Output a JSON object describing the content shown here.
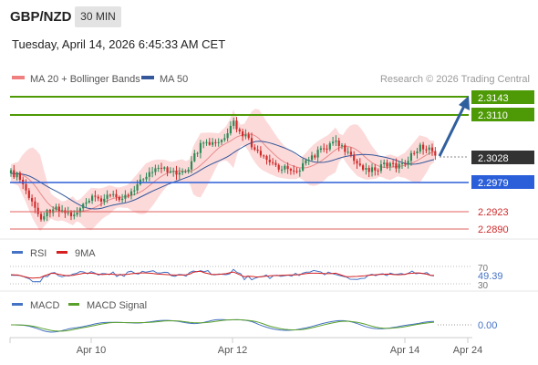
{
  "header": {
    "symbol": "GBP/NZD",
    "interval": "30 MIN",
    "datetime": "Tuesday, April 14, 2026 6:45:33 AM CET"
  },
  "legend": {
    "ma20_label": "MA 20 + Bollinger Bands",
    "ma50_label": "MA 50",
    "copyright": "Research © 2026 Trading Central"
  },
  "colors": {
    "green_level": "#4e9a06",
    "blue_level": "#2b5fd9",
    "red_level": "#e06060",
    "bollinger_fill": "#fbd3d3",
    "ma20": "#e88a8a",
    "ma50": "#35589a",
    "candle_up": "#2e8b57",
    "candle_down": "#d02b2b",
    "current_price_bg": "#333333",
    "arrow": "#2f5f9e",
    "rsi": "#4472c4",
    "rsi_ma": "#d62020",
    "macd": "#4472c4",
    "macd_signal": "#5aa02c"
  },
  "price_levels": [
    {
      "value": "2.3143",
      "kind": "resistance-target"
    },
    {
      "value": "2.3110",
      "kind": "resistance"
    },
    {
      "value": "2.3028",
      "kind": "current"
    },
    {
      "value": "2.2979",
      "kind": "pivot"
    },
    {
      "value": "2.2923",
      "kind": "support"
    },
    {
      "value": "2.2890",
      "kind": "support"
    }
  ],
  "rsi": {
    "label": "RSI",
    "ma_label": "9MA",
    "value": "49.39",
    "level_high": "70",
    "level_low": "30"
  },
  "macd": {
    "label": "MACD",
    "signal_label": "MACD Signal",
    "value": "0.00"
  },
  "x_axis": {
    "ticks": [
      "Apr 10",
      "Apr 12",
      "Apr 14",
      "Apr 24"
    ]
  }
}
